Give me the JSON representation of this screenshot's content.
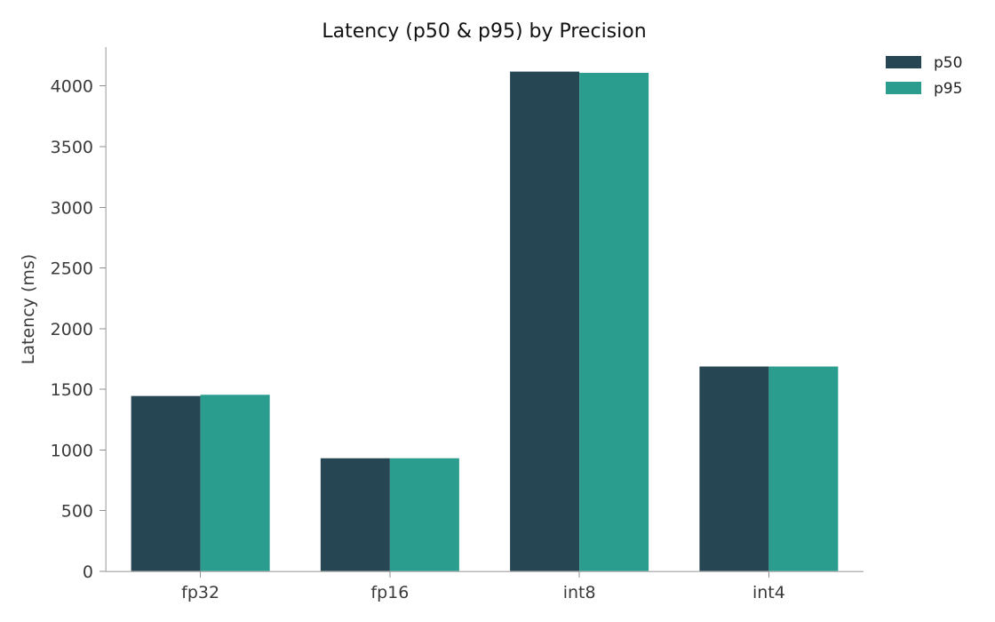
{
  "chart_data": {
    "type": "bar",
    "title": "Latency (p50 & p95) by Precision",
    "xlabel": "",
    "ylabel": "Latency (ms)",
    "categories": [
      "fp32",
      "fp16",
      "int8",
      "int4"
    ],
    "series": [
      {
        "name": "p50",
        "color": "#264653",
        "values": [
          1445,
          932,
          4118,
          1688
        ]
      },
      {
        "name": "p95",
        "color": "#2a9d8f",
        "values": [
          1455,
          932,
          4108,
          1688
        ]
      }
    ],
    "ylim": [
      0,
      4320
    ],
    "yticks": [
      0,
      500,
      1000,
      1500,
      2000,
      2500,
      3000,
      3500,
      4000
    ],
    "grid": false,
    "legend": "top-right"
  }
}
